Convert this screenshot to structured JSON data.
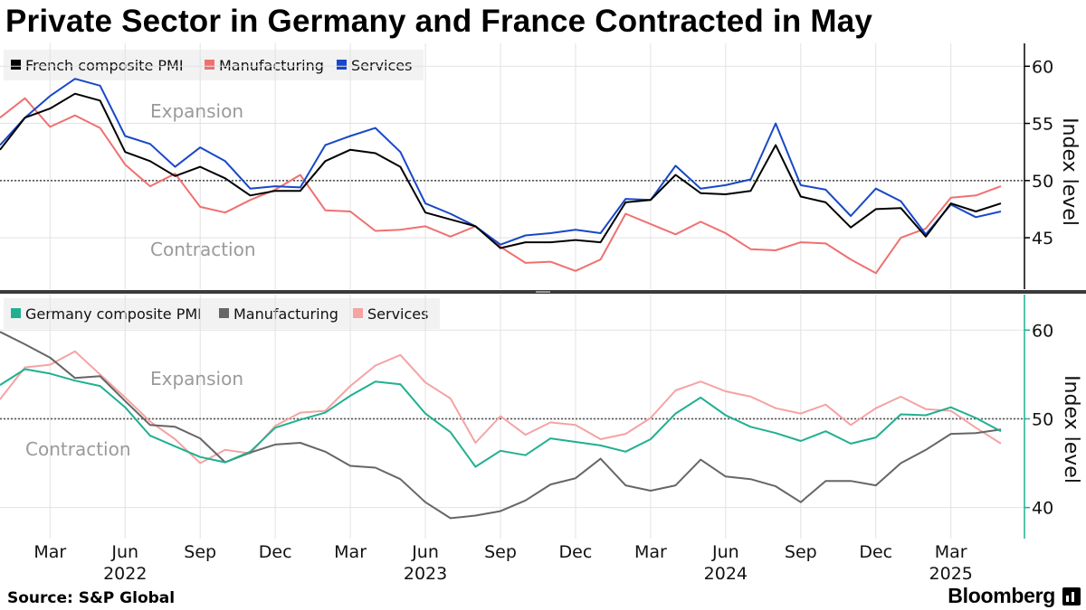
{
  "title": "Private Sector in Germany and France Contracted in May",
  "source": "Source: S&P Global",
  "brand": "Bloomberg",
  "x_ticks": [
    {
      "label": "Mar",
      "year": "",
      "i": 2
    },
    {
      "label": "Jun",
      "year": "2022",
      "i": 5
    },
    {
      "label": "Sep",
      "year": "",
      "i": 8
    },
    {
      "label": "Dec",
      "year": "",
      "i": 11
    },
    {
      "label": "Mar",
      "year": "",
      "i": 14
    },
    {
      "label": "Jun",
      "year": "2023",
      "i": 17
    },
    {
      "label": "Sep",
      "year": "",
      "i": 20
    },
    {
      "label": "Dec",
      "year": "",
      "i": 23
    },
    {
      "label": "Mar",
      "year": "",
      "i": 26
    },
    {
      "label": "Jun",
      "year": "2024",
      "i": 29
    },
    {
      "label": "Sep",
      "year": "",
      "i": 32
    },
    {
      "label": "Dec",
      "year": "",
      "i": 35
    },
    {
      "label": "Mar",
      "year": "2025",
      "i": 38
    }
  ],
  "chart_data": [
    {
      "type": "line",
      "panel": "France",
      "x": [
        "2022-01",
        "2022-02",
        "2022-03",
        "2022-04",
        "2022-05",
        "2022-06",
        "2022-07",
        "2022-08",
        "2022-09",
        "2022-10",
        "2022-11",
        "2022-12",
        "2023-01",
        "2023-02",
        "2023-03",
        "2023-04",
        "2023-05",
        "2023-06",
        "2023-07",
        "2023-08",
        "2023-09",
        "2023-10",
        "2023-11",
        "2023-12",
        "2024-01",
        "2024-02",
        "2024-03",
        "2024-04",
        "2024-05",
        "2024-06",
        "2024-07",
        "2024-08",
        "2024-09",
        "2024-10",
        "2024-11",
        "2024-12",
        "2025-01",
        "2025-02",
        "2025-03",
        "2025-04",
        "2025-05"
      ],
      "ylabel": "Index level",
      "y_ticks": [
        45,
        50,
        55,
        60
      ],
      "ylim": [
        40.5,
        62
      ],
      "reference_line": 50,
      "annotations": [
        "Expansion",
        "Contraction"
      ],
      "legend_position": "top-left",
      "series": [
        {
          "name": "French composite PMI",
          "color": "#000000",
          "values": [
            52.7,
            55.5,
            56.3,
            57.6,
            57.0,
            52.5,
            51.7,
            50.4,
            51.2,
            50.2,
            48.7,
            49.1,
            49.1,
            51.7,
            52.7,
            52.4,
            51.2,
            47.2,
            46.6,
            46.0,
            44.1,
            44.6,
            44.6,
            44.8,
            44.6,
            48.1,
            48.3,
            50.5,
            48.9,
            48.8,
            49.1,
            53.1,
            48.6,
            48.1,
            45.9,
            47.5,
            47.6,
            45.1,
            48.0,
            47.3,
            48.0
          ]
        },
        {
          "name": "Manufacturing",
          "color": "#f07070",
          "values": [
            55.5,
            57.2,
            54.7,
            55.7,
            54.6,
            51.4,
            49.5,
            50.6,
            47.7,
            47.2,
            48.3,
            49.2,
            50.5,
            47.4,
            47.3,
            45.6,
            45.7,
            46.0,
            45.1,
            46.0,
            44.2,
            42.8,
            42.9,
            42.1,
            43.1,
            47.1,
            46.2,
            45.3,
            46.4,
            45.4,
            44.0,
            43.9,
            44.6,
            44.5,
            43.1,
            41.9,
            45.0,
            45.8,
            48.5,
            48.7,
            49.5
          ]
        },
        {
          "name": "Services",
          "color": "#1848c8",
          "values": [
            53.1,
            55.5,
            57.4,
            58.9,
            58.3,
            53.9,
            53.2,
            51.2,
            52.9,
            51.7,
            49.3,
            49.5,
            49.4,
            53.1,
            53.9,
            54.6,
            52.5,
            48.0,
            47.1,
            46.0,
            44.4,
            45.2,
            45.4,
            45.7,
            45.4,
            48.4,
            48.3,
            51.3,
            49.3,
            49.6,
            50.1,
            55.0,
            49.6,
            49.2,
            46.9,
            49.3,
            48.2,
            45.3,
            47.9,
            46.8,
            47.3
          ]
        }
      ]
    },
    {
      "type": "line",
      "panel": "Germany",
      "x": [
        "2022-01",
        "2022-02",
        "2022-03",
        "2022-04",
        "2022-05",
        "2022-06",
        "2022-07",
        "2022-08",
        "2022-09",
        "2022-10",
        "2022-11",
        "2022-12",
        "2023-01",
        "2023-02",
        "2023-03",
        "2023-04",
        "2023-05",
        "2023-06",
        "2023-07",
        "2023-08",
        "2023-09",
        "2023-10",
        "2023-11",
        "2023-12",
        "2024-01",
        "2024-02",
        "2024-03",
        "2024-04",
        "2024-05",
        "2024-06",
        "2024-07",
        "2024-08",
        "2024-09",
        "2024-10",
        "2024-11",
        "2024-12",
        "2025-01",
        "2025-02",
        "2025-03",
        "2025-04",
        "2025-05"
      ],
      "ylabel": "Index level",
      "y_ticks": [
        40,
        50,
        60
      ],
      "ylim": [
        36.5,
        64
      ],
      "reference_line": 50,
      "annotations": [
        "Expansion",
        "Contraction"
      ],
      "legend_position": "top-left",
      "series": [
        {
          "name": "Germany composite PMI",
          "color": "#20b090",
          "values": [
            53.8,
            55.6,
            55.1,
            54.3,
            53.7,
            51.3,
            48.1,
            46.9,
            45.7,
            45.1,
            46.3,
            49.0,
            49.9,
            50.7,
            52.6,
            54.2,
            53.9,
            50.6,
            48.5,
            44.6,
            46.4,
            45.9,
            47.8,
            47.4,
            47.0,
            46.3,
            47.7,
            50.6,
            52.4,
            50.4,
            49.1,
            48.4,
            47.5,
            48.6,
            47.2,
            47.9,
            50.5,
            50.4,
            51.3,
            50.1,
            48.6
          ]
        },
        {
          "name": "Manufacturing",
          "color": "#666666",
          "values": [
            59.8,
            58.4,
            56.9,
            54.6,
            54.8,
            52.0,
            49.3,
            49.1,
            47.8,
            45.1,
            46.2,
            47.1,
            47.3,
            46.3,
            44.7,
            44.5,
            43.2,
            40.6,
            38.8,
            39.1,
            39.6,
            40.8,
            42.6,
            43.3,
            45.5,
            42.5,
            41.9,
            42.5,
            45.4,
            43.5,
            43.2,
            42.4,
            40.6,
            43.0,
            43.0,
            42.5,
            45.0,
            46.5,
            48.3,
            48.4,
            48.8
          ]
        },
        {
          "name": "Services",
          "color": "#f5a3a3",
          "values": [
            52.2,
            55.8,
            56.1,
            57.6,
            55.0,
            52.4,
            49.7,
            47.7,
            45.0,
            46.5,
            46.1,
            49.2,
            50.7,
            50.9,
            53.7,
            56.0,
            57.2,
            54.1,
            52.3,
            47.3,
            50.3,
            48.2,
            49.6,
            49.3,
            47.7,
            48.3,
            50.1,
            53.2,
            54.2,
            53.1,
            52.5,
            51.2,
            50.6,
            51.6,
            49.3,
            51.2,
            52.5,
            51.1,
            50.9,
            49.0,
            47.2
          ]
        }
      ]
    }
  ]
}
